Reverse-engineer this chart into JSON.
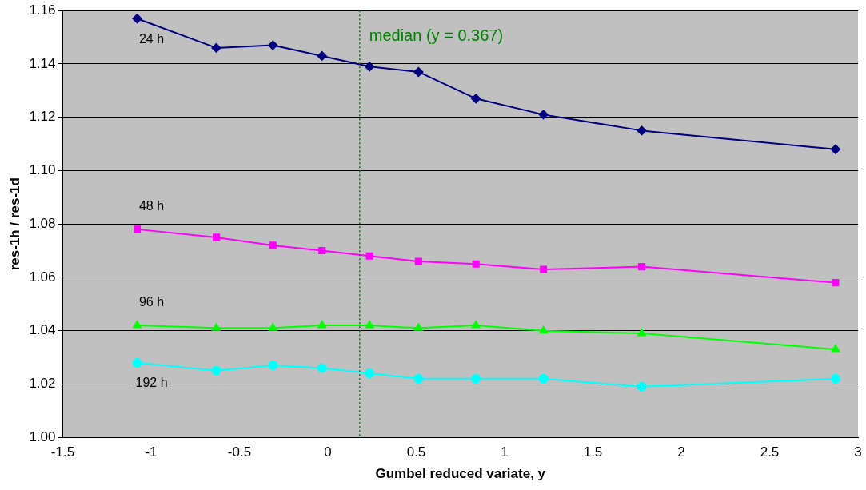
{
  "chart_data": {
    "type": "line",
    "xlabel": "Gumbel reduced variate, y",
    "ylabel": "res-1h / res-1d",
    "x": [
      -1.079,
      -0.631,
      -0.311,
      -0.033,
      0.236,
      0.513,
      0.838,
      1.22,
      1.776,
      2.873
    ],
    "series": [
      {
        "name": "24 h",
        "color": "#000080",
        "marker": "diamond",
        "values": [
          1.157,
          1.146,
          1.147,
          1.143,
          1.139,
          1.137,
          1.127,
          1.121,
          1.115,
          1.108
        ]
      },
      {
        "name": "48 h",
        "color": "#ff00ff",
        "marker": "square",
        "values": [
          1.078,
          1.075,
          1.072,
          1.07,
          1.068,
          1.066,
          1.065,
          1.063,
          1.064,
          1.058
        ]
      },
      {
        "name": "96 h",
        "color": "#00ff00",
        "marker": "triangle",
        "values": [
          1.042,
          1.041,
          1.041,
          1.042,
          1.042,
          1.041,
          1.042,
          1.04,
          1.039,
          1.033
        ]
      },
      {
        "name": "192 h",
        "color": "#00ffff",
        "marker": "circle",
        "values": [
          1.028,
          1.025,
          1.027,
          1.026,
          1.024,
          1.022,
          1.022,
          1.022,
          1.019,
          1.022
        ]
      }
    ],
    "xlim": [
      -1.5,
      3
    ],
    "xticks": [
      -1.5,
      -1,
      -0.5,
      0,
      0.5,
      1,
      1.5,
      2,
      2.5,
      3
    ],
    "ylim": [
      1,
      1.16
    ],
    "yticks": [
      {
        "value": 1,
        "label": "1.00"
      },
      {
        "value": 1.02,
        "label": "1.02"
      },
      {
        "value": 1.04,
        "label": "1.04"
      },
      {
        "value": 1.06,
        "label": "1.06"
      },
      {
        "value": 1.08,
        "label": "1.08"
      },
      {
        "value": 1.1,
        "label": "1.10"
      },
      {
        "value": 1.12,
        "label": "1.12"
      },
      {
        "value": 1.14,
        "label": "1.14"
      },
      {
        "value": 1.16,
        "label": "1.16"
      }
    ],
    "grid": "y",
    "legend": false,
    "line_style": "solid",
    "ref_lines": [
      {
        "axis": "x",
        "value": 0.18,
        "color": "#008000",
        "line_style": "dotted"
      }
    ],
    "annotations": [
      "median (y = 0.367)"
    ]
  }
}
